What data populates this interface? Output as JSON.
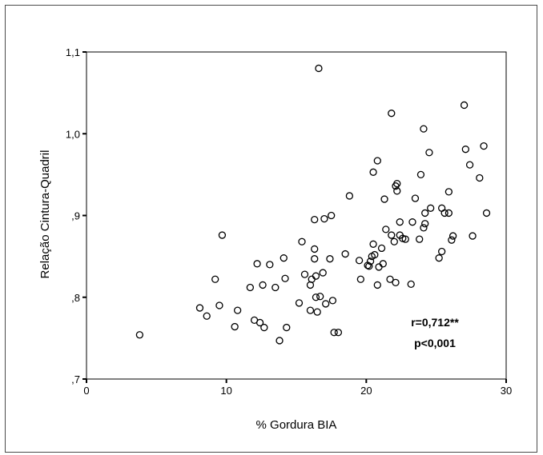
{
  "chart_data": {
    "type": "scatter",
    "title": "",
    "xlabel": "% Gordura BIA",
    "ylabel": "Relação Cintura-Quadril",
    "xlim": [
      0,
      30
    ],
    "ylim": [
      0.7,
      1.1
    ],
    "x_ticks": [
      0,
      10,
      20,
      30
    ],
    "x_tick_labels": [
      "0",
      "10",
      "20",
      "30"
    ],
    "y_ticks": [
      0.7,
      0.8,
      0.9,
      1.0,
      1.1
    ],
    "y_tick_labels": [
      ",7",
      ",8",
      ",9",
      "1,0",
      "1,1"
    ],
    "grid": false,
    "marker": "open-circle",
    "annotations": [
      "r=0,712**",
      "p<0,001"
    ],
    "points": [
      [
        3.8,
        0.754
      ],
      [
        8.1,
        0.787
      ],
      [
        8.6,
        0.777
      ],
      [
        9.2,
        0.822
      ],
      [
        9.5,
        0.79
      ],
      [
        9.7,
        0.876
      ],
      [
        10.6,
        0.764
      ],
      [
        10.8,
        0.784
      ],
      [
        11.7,
        0.812
      ],
      [
        12.0,
        0.772
      ],
      [
        12.2,
        0.841
      ],
      [
        12.4,
        0.769
      ],
      [
        12.6,
        0.815
      ],
      [
        12.7,
        0.763
      ],
      [
        13.1,
        0.84
      ],
      [
        13.5,
        0.812
      ],
      [
        13.8,
        0.747
      ],
      [
        14.1,
        0.848
      ],
      [
        14.2,
        0.823
      ],
      [
        14.3,
        0.763
      ],
      [
        15.2,
        0.793
      ],
      [
        15.4,
        0.868
      ],
      [
        15.6,
        0.828
      ],
      [
        16.0,
        0.784
      ],
      [
        16.0,
        0.815
      ],
      [
        16.1,
        0.822
      ],
      [
        16.3,
        0.859
      ],
      [
        16.3,
        0.895
      ],
      [
        16.3,
        0.847
      ],
      [
        16.4,
        0.8
      ],
      [
        16.4,
        0.826
      ],
      [
        16.5,
        0.782
      ],
      [
        16.6,
        1.08
      ],
      [
        16.7,
        0.801
      ],
      [
        16.9,
        0.83
      ],
      [
        17.0,
        0.896
      ],
      [
        17.1,
        0.792
      ],
      [
        17.4,
        0.847
      ],
      [
        17.5,
        0.9
      ],
      [
        17.6,
        0.796
      ],
      [
        17.7,
        0.757
      ],
      [
        18.0,
        0.757
      ],
      [
        18.5,
        0.853
      ],
      [
        18.8,
        0.924
      ],
      [
        19.5,
        0.845
      ],
      [
        19.6,
        0.822
      ],
      [
        20.1,
        0.839
      ],
      [
        20.2,
        0.838
      ],
      [
        20.3,
        0.844
      ],
      [
        20.4,
        0.85
      ],
      [
        20.5,
        0.865
      ],
      [
        20.5,
        0.953
      ],
      [
        20.6,
        0.852
      ],
      [
        20.8,
        0.967
      ],
      [
        20.8,
        0.815
      ],
      [
        20.9,
        0.837
      ],
      [
        21.1,
        0.86
      ],
      [
        21.2,
        0.841
      ],
      [
        21.3,
        0.92
      ],
      [
        21.4,
        0.883
      ],
      [
        21.7,
        0.822
      ],
      [
        21.8,
        1.025
      ],
      [
        21.8,
        0.876
      ],
      [
        22.0,
        0.868
      ],
      [
        22.1,
        0.936
      ],
      [
        22.1,
        0.818
      ],
      [
        22.2,
        0.939
      ],
      [
        22.2,
        0.93
      ],
      [
        22.4,
        0.892
      ],
      [
        22.4,
        0.876
      ],
      [
        22.6,
        0.872
      ],
      [
        22.8,
        0.871
      ],
      [
        23.2,
        0.816
      ],
      [
        23.3,
        0.892
      ],
      [
        23.5,
        0.921
      ],
      [
        23.8,
        0.871
      ],
      [
        23.9,
        0.95
      ],
      [
        24.1,
        1.006
      ],
      [
        24.1,
        0.885
      ],
      [
        24.2,
        0.89
      ],
      [
        24.2,
        0.903
      ],
      [
        24.5,
        0.977
      ],
      [
        24.6,
        0.909
      ],
      [
        25.2,
        0.848
      ],
      [
        25.4,
        0.856
      ],
      [
        25.4,
        0.909
      ],
      [
        25.6,
        0.903
      ],
      [
        25.9,
        0.929
      ],
      [
        25.9,
        0.903
      ],
      [
        26.1,
        0.87
      ],
      [
        26.2,
        0.875
      ],
      [
        27.0,
        1.035
      ],
      [
        27.1,
        0.981
      ],
      [
        27.4,
        0.962
      ],
      [
        27.6,
        0.875
      ],
      [
        28.1,
        0.946
      ],
      [
        28.4,
        0.985
      ],
      [
        28.6,
        0.903
      ]
    ]
  }
}
